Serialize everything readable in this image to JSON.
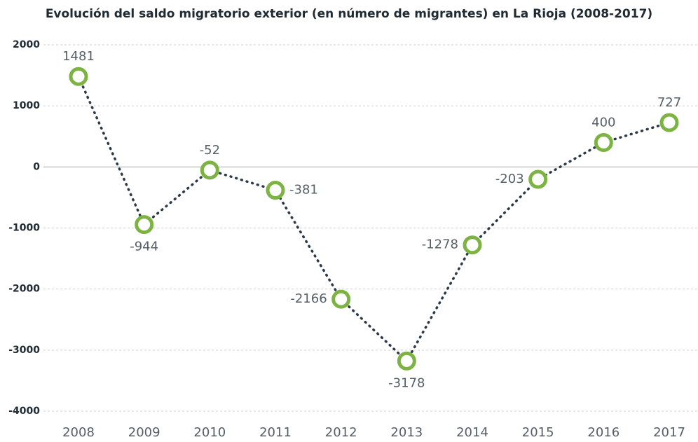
{
  "chart_data": {
    "type": "line",
    "title": "Evolución del saldo migratorio exterior (en número de migrantes) en La Rioja (2008-2017)",
    "categories": [
      "2008",
      "2009",
      "2010",
      "2011",
      "2012",
      "2013",
      "2014",
      "2015",
      "2016",
      "2017"
    ],
    "series": [
      {
        "name": "Saldo migratorio exterior",
        "color": "#7cb342",
        "values": [
          1481,
          -944,
          -52,
          -381,
          -2166,
          -3178,
          -1278,
          -203,
          400,
          727
        ]
      }
    ],
    "line_color": "#2b3a48",
    "ylim": [
      -4000,
      2000
    ],
    "yticks": [
      -4000,
      -3000,
      -2000,
      -1000,
      0,
      1000,
      2000
    ],
    "grid": true
  }
}
